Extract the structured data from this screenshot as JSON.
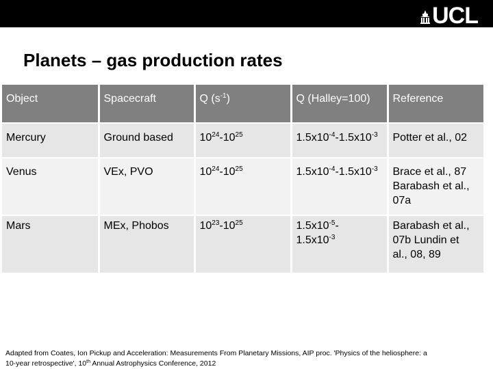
{
  "logo": {
    "text": "UCL"
  },
  "slide": {
    "title": "Planets – gas production rates"
  },
  "table": {
    "headers": {
      "object": "Object",
      "spacecraft": "Spacecraft",
      "q_prefix": "Q (s",
      "q_exp": "-1",
      "q_suffix": ")",
      "q_halley": "Q (Halley=100)",
      "reference": "Reference"
    },
    "rows": [
      {
        "object": "Mercury",
        "spacecraft": "Ground based",
        "q_a": "10",
        "q_a_exp": "24",
        "q_b": "-10",
        "q_b_exp": "25",
        "h_a": "1.5x10",
        "h_a_exp": "-4",
        "h_b": "-1.5x10",
        "h_b_exp": "-3",
        "reference": "Potter et al., 02"
      },
      {
        "object": "Venus",
        "spacecraft": "VEx, PVO",
        "q_a": "10",
        "q_a_exp": "24",
        "q_b": "-10",
        "q_b_exp": "25",
        "h_a": "1.5x10",
        "h_a_exp": "-4",
        "h_b": "-1.5x10",
        "h_b_exp": "-3",
        "reference_lines": [
          "Brace et al., 87",
          "Barabash et al.,",
          "07a"
        ]
      },
      {
        "object": "Mars",
        "spacecraft": "MEx, Phobos",
        "q_a": "10",
        "q_a_exp": "23",
        "q_b": "-10",
        "q_b_exp": "25",
        "h_a": "1.5x10",
        "h_a_exp": "-5",
        "h_a_tail": "-",
        "h_b": "1.5x10",
        "h_b_exp": "-3",
        "reference_lines": [
          "Barabash et al.,",
          "07b Lundin et",
          "al., 08, 89"
        ]
      }
    ]
  },
  "footnote": {
    "line1": "Adapted from Coates, Ion Pickup and Acceleration: Measurements From Planetary Missions, AIP proc. 'Physics of the heliosphere: a",
    "line2_a": "10-year retrospective', 10",
    "line2_sup": "th",
    "line2_b": " Annual Astrophysics Conference, 2012"
  },
  "colors": {
    "topbar": "#000000",
    "header_bg": "#808080",
    "row_dark": "#e6e6e6",
    "row_light": "#f2f2f2"
  }
}
